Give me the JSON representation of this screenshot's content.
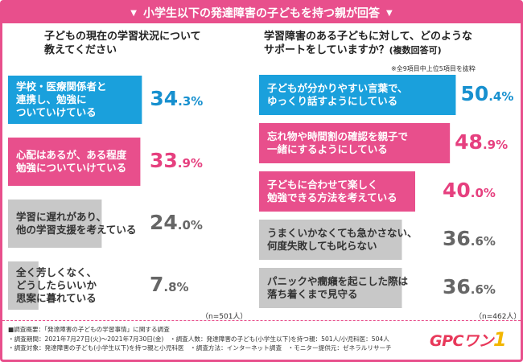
{
  "banner": {
    "title": "小学生以下の発達障害の子どもを持つ親が回答"
  },
  "colors": {
    "accent": "#e84f8c",
    "blue": "#1aa0dc",
    "pink": "#e84f8c",
    "gray": "#c8c8c8",
    "blue_text": "#1790cf",
    "pink_text": "#e6407f",
    "gray_text": "#666666"
  },
  "chart_data": [
    {
      "type": "bar",
      "orientation": "horizontal",
      "title": "子どもの現在の学習状況について\n教えてください",
      "categories": [
        "学校・医療関係者と\n連携し、勉強に\nついていけている",
        "心配はあるが、ある程度\n勉強についていけている",
        "学習に遅れがあり、\n他の学習支援を考えている",
        "全く芳しくなく、\nどうしたらいいか\n思案に暮れている"
      ],
      "values": [
        34.3,
        33.9,
        24.0,
        7.8
      ],
      "value_labels": [
        {
          "int": "34",
          "dec": ".3%"
        },
        {
          "int": "33",
          "dec": ".9%"
        },
        {
          "int": "24",
          "dec": ".0%"
        },
        {
          "int": "7",
          "dec": ".8%"
        }
      ],
      "styles": [
        "blue",
        "pink",
        "gray",
        "gray"
      ],
      "n_label": "（n=501人）"
    },
    {
      "type": "bar",
      "orientation": "horizontal",
      "title": "学習障害のある子どもに対して、どのような\nサポートをしていますか？",
      "title_suffix": "(複数回答可)",
      "note": "※全9項目中上位5項目を抜粋",
      "categories": [
        "子どもが分かりやすい言葉で、\nゆっくり話すようにしている",
        "忘れ物や時間割の確認を親子で\n一緒にするようにしている",
        "子どもに合わせて楽しく\n勉強できる方法を考えている",
        "うまくいかなくても急かさない、\n何度失敗しても叱らない",
        "パニックや癇癪を起こした際は\n落ち着くまで見守る"
      ],
      "values": [
        50.4,
        48.9,
        40.0,
        36.6,
        36.6
      ],
      "value_labels": [
        {
          "int": "50",
          "dec": ".4%"
        },
        {
          "int": "48",
          "dec": ".9%"
        },
        {
          "int": "40",
          "dec": ".0%"
        },
        {
          "int": "36",
          "dec": ".6%"
        },
        {
          "int": "36",
          "dec": ".6%"
        }
      ],
      "styles": [
        "blue",
        "pink",
        "pink",
        "gray",
        "gray"
      ],
      "n_label": "（n=462人）"
    }
  ],
  "footer": {
    "lines": [
      "■調査概要：「発達障害の子どもの学習事情」に関する調査",
      "・調査期間：2021年7月27日(火)〜2021年7月30日(金)　・調査人数：発達障害の子ども(小学生以下)を持つ親：501人/小児科医：504人",
      "・調査対象：発達障害の子ども(小学生以下)を持つ親と小児科医　・調査方法：インターネット調査　・モニター提供元：ゼネラルリサーチ"
    ],
    "logo_text": "GPCワン",
    "logo_mark": "1"
  }
}
